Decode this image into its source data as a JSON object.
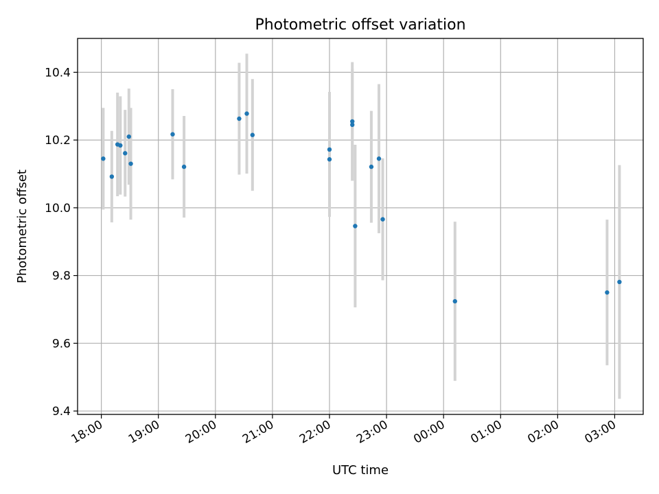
{
  "chart_data": {
    "type": "scatter",
    "title": "Photometric offset variation",
    "xlabel": "UTC time",
    "ylabel": "Photometric offset",
    "x_format": "HH:MM",
    "x_ticks": [
      "18:00",
      "19:00",
      "20:00",
      "21:00",
      "22:00",
      "23:00",
      "00:00",
      "01:00",
      "02:00",
      "03:00"
    ],
    "y_ticks": [
      "9.4",
      "9.6",
      "9.8",
      "10.0",
      "10.2",
      "10.4"
    ],
    "xlim": [
      "17:35",
      "03:30"
    ],
    "ylim": [
      9.39,
      10.5
    ],
    "grid": true,
    "colors": {
      "point": "#1f77b4",
      "error_bar": "#d3d3d3"
    },
    "series": [
      {
        "points": [
          {
            "x": "18:02",
            "y": 10.145,
            "yerr": 0.15
          },
          {
            "x": "18:11",
            "y": 10.092,
            "yerr": 0.135
          },
          {
            "x": "18:17",
            "y": 10.187,
            "yerr": 0.153
          },
          {
            "x": "18:20",
            "y": 10.184,
            "yerr": 0.145
          },
          {
            "x": "18:25",
            "y": 10.161,
            "yerr": 0.128
          },
          {
            "x": "18:29",
            "y": 10.21,
            "yerr": 0.142
          },
          {
            "x": "18:31",
            "y": 10.13,
            "yerr": 0.165
          },
          {
            "x": "19:15",
            "y": 10.217,
            "yerr": 0.133
          },
          {
            "x": "19:27",
            "y": 10.121,
            "yerr": 0.15
          },
          {
            "x": "20:25",
            "y": 10.263,
            "yerr": 0.165
          },
          {
            "x": "20:33",
            "y": 10.278,
            "yerr": 0.177
          },
          {
            "x": "20:39",
            "y": 10.215,
            "yerr": 0.165
          },
          {
            "x": "22:00",
            "y": 10.143,
            "yerr": 0.17
          },
          {
            "x": "22:00",
            "y": 10.172,
            "yerr": 0.17
          },
          {
            "x": "22:24",
            "y": 10.245,
            "yerr": 0.165
          },
          {
            "x": "22:24",
            "y": 10.255,
            "yerr": 0.175
          },
          {
            "x": "22:27",
            "y": 9.946,
            "yerr": 0.24
          },
          {
            "x": "22:44",
            "y": 10.121,
            "yerr": 0.165
          },
          {
            "x": "22:52",
            "y": 10.145,
            "yerr": 0.22
          },
          {
            "x": "22:56",
            "y": 9.966,
            "yerr": 0.18
          },
          {
            "x": "00:12",
            "y": 9.724,
            "yerr": 0.235
          },
          {
            "x": "02:52",
            "y": 9.75,
            "yerr": 0.215
          },
          {
            "x": "03:05",
            "y": 9.781,
            "yerr": 0.345
          }
        ]
      }
    ]
  }
}
